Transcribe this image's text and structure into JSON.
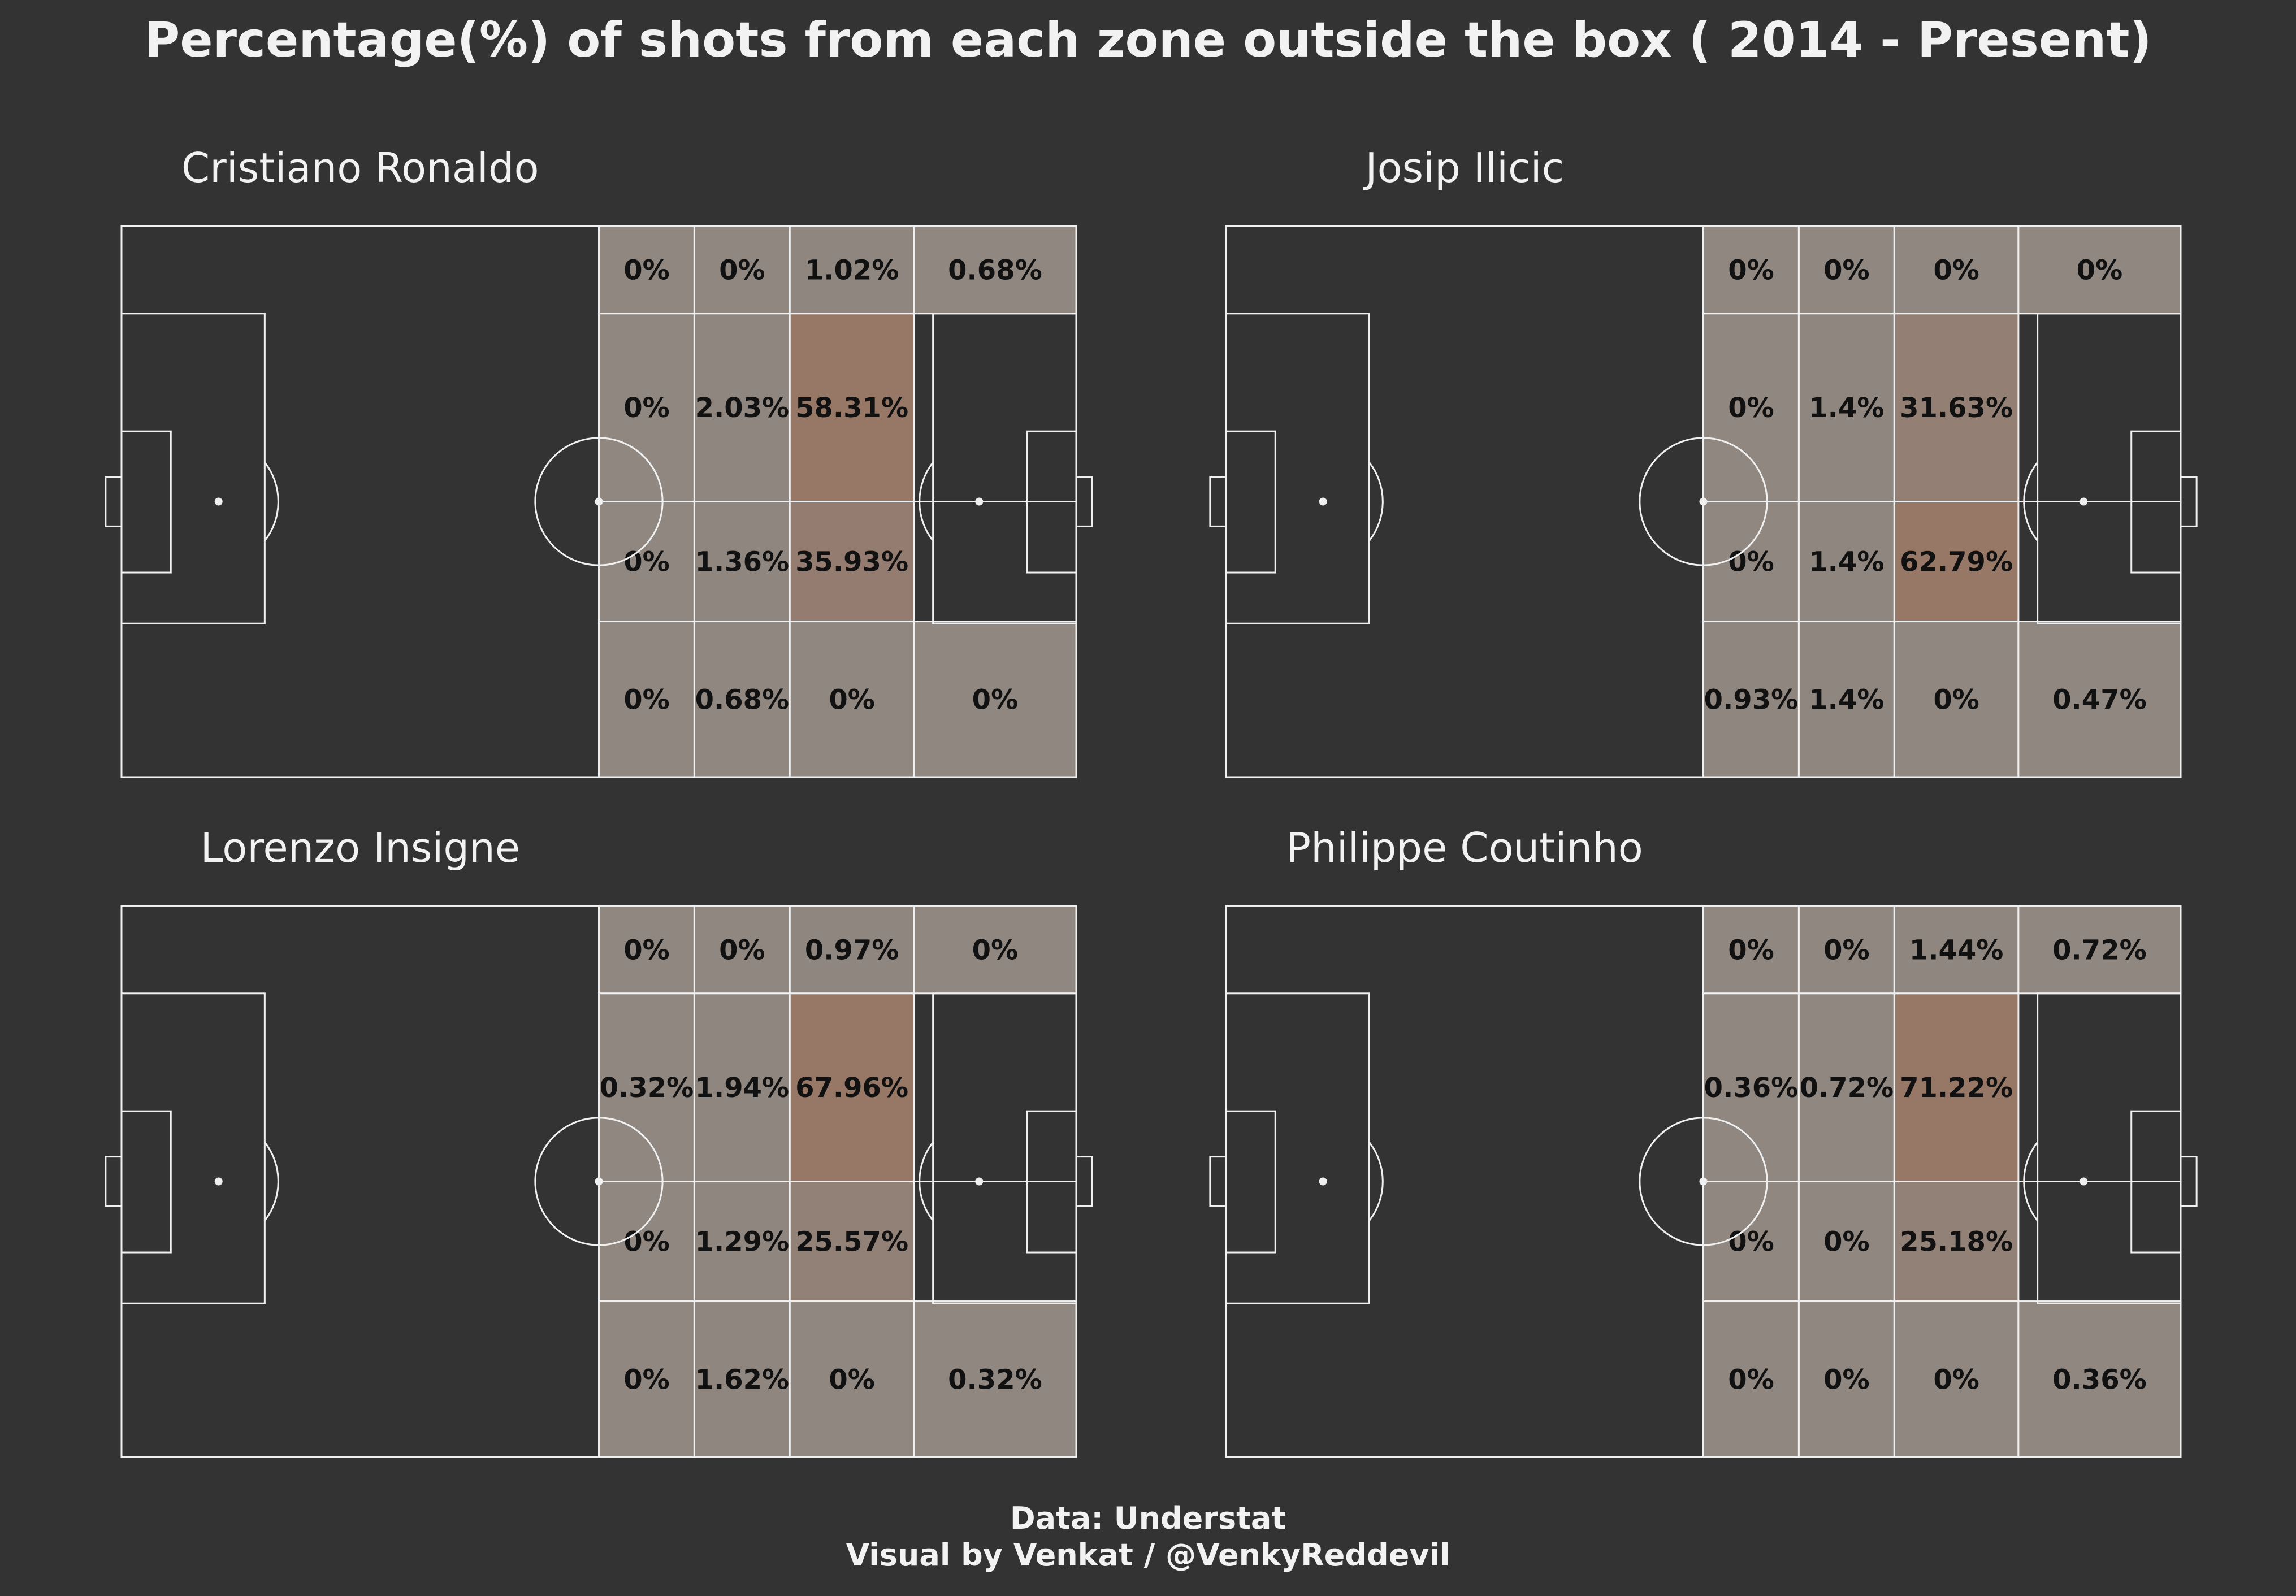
{
  "title": "Percentage(%) of shots from each zone outside the box ( 2014 - Present)",
  "footer": {
    "line1": "Data: Understat",
    "line2": "Visual by Venkat / @VenkyReddevil"
  },
  "colors": {
    "background": "#333333",
    "lines": "#f0f0f0",
    "zone_low": "#8f8780",
    "zone_high": "#977867",
    "label_text": "#111111"
  },
  "chart_data": [
    {
      "type": "heatmap",
      "title": "Cristiano Ronaldo",
      "cells": [
        [
          "0%",
          "0%",
          "1.02%",
          "0.68%"
        ],
        [
          "0%",
          "2.03%",
          "58.31%",
          null
        ],
        [
          "0%",
          "1.36%",
          "35.93%",
          null
        ],
        [
          "0%",
          "0.68%",
          "0%",
          "0%"
        ]
      ],
      "values": [
        [
          0,
          0,
          1.02,
          0.68
        ],
        [
          0,
          2.03,
          58.31,
          null
        ],
        [
          0,
          1.36,
          35.93,
          null
        ],
        [
          0,
          0.68,
          0,
          0
        ]
      ]
    },
    {
      "type": "heatmap",
      "title": "Josip Ilicic",
      "cells": [
        [
          "0%",
          "0%",
          "0%",
          "0%"
        ],
        [
          "0%",
          "1.4%",
          "31.63%",
          null
        ],
        [
          "0%",
          "1.4%",
          "62.79%",
          null
        ],
        [
          "0.93%",
          "1.4%",
          "0%",
          "0.47%"
        ]
      ],
      "values": [
        [
          0,
          0,
          0,
          0
        ],
        [
          0,
          1.4,
          31.63,
          null
        ],
        [
          0,
          1.4,
          62.79,
          null
        ],
        [
          0.93,
          1.4,
          0,
          0.47
        ]
      ]
    },
    {
      "type": "heatmap",
      "title": "Lorenzo Insigne",
      "cells": [
        [
          "0%",
          "0%",
          "0.97%",
          "0%"
        ],
        [
          "0.32%",
          "1.94%",
          "67.96%",
          null
        ],
        [
          "0%",
          "1.29%",
          "25.57%",
          null
        ],
        [
          "0%",
          "1.62%",
          "0%",
          "0.32%"
        ]
      ],
      "values": [
        [
          0,
          0,
          0.97,
          0
        ],
        [
          0.32,
          1.94,
          67.96,
          null
        ],
        [
          0,
          1.29,
          25.57,
          null
        ],
        [
          0,
          1.62,
          0,
          0.32
        ]
      ]
    },
    {
      "type": "heatmap",
      "title": "Philippe Coutinho",
      "cells": [
        [
          "0%",
          "0%",
          "1.44%",
          "0.72%"
        ],
        [
          "0.36%",
          "0.72%",
          "71.22%",
          null
        ],
        [
          "0%",
          "0%",
          "25.18%",
          null
        ],
        [
          "0%",
          "0%",
          "0%",
          "0.36%"
        ]
      ],
      "values": [
        [
          0,
          0,
          1.44,
          0.72
        ],
        [
          0.36,
          0.72,
          71.22,
          null
        ],
        [
          0,
          0,
          25.18,
          null
        ],
        [
          0,
          0,
          0,
          0.36
        ]
      ]
    }
  ]
}
